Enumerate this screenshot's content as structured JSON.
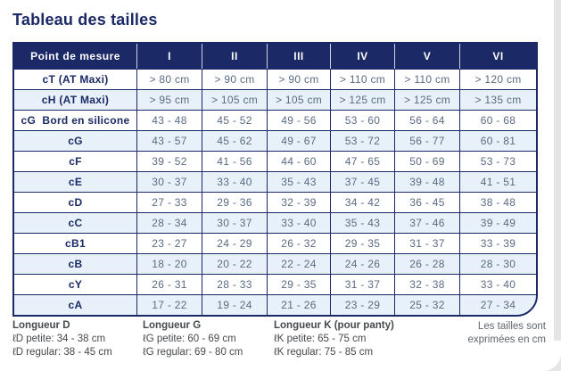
{
  "page": {
    "title": "Tableau des tailles"
  },
  "colors": {
    "navy": "#1b2a66",
    "row_alt": "#e8f1f9",
    "cell_text": "#5c6b83",
    "legend_text": "#46494d",
    "note_text": "#5d666f"
  },
  "table": {
    "header": [
      "Point de mesure",
      "I",
      "II",
      "III",
      "IV",
      "V",
      "VI"
    ],
    "rows": [
      {
        "label": "cT (AT Maxi)",
        "values": [
          "> 80 cm",
          "> 90 cm",
          "> 90 cm",
          "> 110 cm",
          "> 110 cm",
          "> 120 cm"
        ]
      },
      {
        "label": "cH (AT Maxi)",
        "values": [
          "> 95 cm",
          "> 105 cm",
          "> 105 cm",
          "> 125 cm",
          "> 125 cm",
          "> 135 cm"
        ]
      },
      {
        "label": "cG  Bord en silicone",
        "values": [
          "43 - 48",
          "45 - 52",
          "49 - 56",
          "53 - 60",
          "56 - 64",
          "60 - 68"
        ]
      },
      {
        "label": "cG",
        "values": [
          "43 - 57",
          "45 - 62",
          "49 - 67",
          "53 - 72",
          "56 - 77",
          "60 - 81"
        ]
      },
      {
        "label": "cF",
        "values": [
          "39 - 52",
          "41 - 56",
          "44 - 60",
          "47 - 65",
          "50 - 69",
          "53 - 73"
        ]
      },
      {
        "label": "cE",
        "values": [
          "30 - 37",
          "33 - 40",
          "35 - 43",
          "37 - 45",
          "39 - 48",
          "41 - 51"
        ]
      },
      {
        "label": "cD",
        "values": [
          "27 - 33",
          "29 - 36",
          "32 - 39",
          "34 - 42",
          "36 - 45",
          "38 - 48"
        ]
      },
      {
        "label": "cC",
        "values": [
          "28 - 34",
          "30 - 37",
          "33 - 40",
          "35 - 43",
          "37 - 46",
          "39 - 49"
        ]
      },
      {
        "label": "cB1",
        "values": [
          "23 - 27",
          "24 - 29",
          "26 - 32",
          "29 - 35",
          "31 - 37",
          "33 - 39"
        ]
      },
      {
        "label": "cB",
        "values": [
          "18 - 20",
          "20 - 22",
          "22 - 24",
          "24 - 26",
          "26 - 28",
          "28 - 30"
        ]
      },
      {
        "label": "cY",
        "values": [
          "26 - 31",
          "28 - 33",
          "29 - 35",
          "31 - 37",
          "32 - 38",
          "33 - 40"
        ]
      },
      {
        "label": "cA",
        "values": [
          "17 - 22",
          "19 - 24",
          "21 - 26",
          "23 - 29",
          "25 - 32",
          "27 - 34"
        ]
      }
    ]
  },
  "legend": {
    "columns": [
      {
        "title": "Longueur D",
        "lines": [
          "ℓD petite: 34 - 38 cm",
          "ℓD regular: 38 - 45 cm"
        ]
      },
      {
        "title": "Longueur G",
        "lines": [
          "ℓG petite: 60 - 69 cm",
          "ℓG regular: 69 - 80 cm"
        ]
      },
      {
        "title": "Longueur K (pour panty)",
        "lines": [
          "ℓK petite: 65 - 75 cm",
          "ℓK regular: 75 - 85 cm"
        ]
      }
    ],
    "note_lines": [
      "Les tailles sont",
      "exprimées en cm"
    ]
  }
}
